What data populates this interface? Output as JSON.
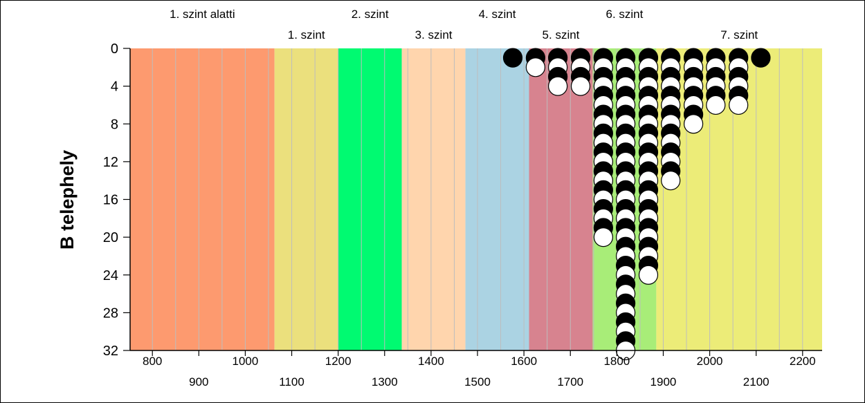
{
  "chart_data": {
    "type": "scatter",
    "title": "",
    "xlabel": "",
    "ylabel": "B telephely",
    "xlim": [
      752,
      2242
    ],
    "ylim": [
      0,
      32
    ],
    "y_inverted": true,
    "y_ticks": [
      0,
      4,
      8,
      12,
      16,
      20,
      24,
      28,
      32
    ],
    "x_ticks_upper": [
      800,
      1000,
      1200,
      1400,
      1600,
      1800,
      2000,
      2200
    ],
    "x_ticks_lower": [
      900,
      1100,
      1300,
      1500,
      1700,
      1900,
      2100
    ],
    "grid": {
      "vertical_step": 50,
      "color": "#bdbdbd"
    },
    "bands": [
      {
        "label": "1. szint alatti",
        "from": 752,
        "to": 1063,
        "color": "#fd9a6f",
        "label_row": "top"
      },
      {
        "label": "1. szint",
        "from": 1063,
        "to": 1200,
        "color": "#ebe07d",
        "label_row": "bottom"
      },
      {
        "label": "2. szint",
        "from": 1200,
        "to": 1337,
        "color": "#00fa71",
        "label_row": "top"
      },
      {
        "label": "3. szint",
        "from": 1337,
        "to": 1474,
        "color": "#ffd5ad",
        "label_row": "bottom"
      },
      {
        "label": "4. szint",
        "from": 1474,
        "to": 1611,
        "color": "#abd3e3",
        "label_row": "top"
      },
      {
        "label": "5. szint",
        "from": 1611,
        "to": 1748,
        "color": "#d7838f",
        "label_row": "bottom"
      },
      {
        "label": "6. szint",
        "from": 1748,
        "to": 1885,
        "color": "#a8ed78",
        "label_row": "top"
      },
      {
        "label": "7. szint",
        "from": 1885,
        "to": 2242,
        "color": "#ecec78",
        "label_row": "bottom"
      }
    ],
    "series": [
      {
        "marker": "circle-black",
        "color": "#000000",
        "columns": [
          {
            "x": 1576,
            "count": 1
          },
          {
            "x": 1625,
            "count": 1
          },
          {
            "x": 1673,
            "count": 3
          },
          {
            "x": 1722,
            "count": 3
          },
          {
            "x": 1771,
            "count": 19
          },
          {
            "x": 1819,
            "count": 31
          },
          {
            "x": 1868,
            "count": 23
          },
          {
            "x": 1916,
            "count": 13
          },
          {
            "x": 1965,
            "count": 7
          },
          {
            "x": 2013,
            "count": 5
          },
          {
            "x": 2062,
            "count": 5
          },
          {
            "x": 2110,
            "count": 1
          }
        ]
      },
      {
        "marker": "circle-white",
        "color": "#ffffff",
        "columns": [
          {
            "x": 1625,
            "count": 1
          },
          {
            "x": 1673,
            "count": 1
          },
          {
            "x": 1722,
            "count": 1
          },
          {
            "x": 1771,
            "count": 1
          },
          {
            "x": 1819,
            "count": 1
          },
          {
            "x": 1868,
            "count": 1
          },
          {
            "x": 1916,
            "count": 1
          },
          {
            "x": 1965,
            "count": 1
          },
          {
            "x": 2013,
            "count": 1
          },
          {
            "x": 2062,
            "count": 1
          }
        ]
      }
    ]
  },
  "colors": {
    "marker_black": "#000000",
    "marker_white": "#ffffff",
    "grid": "#bdbdbd",
    "axis": "#000000"
  }
}
